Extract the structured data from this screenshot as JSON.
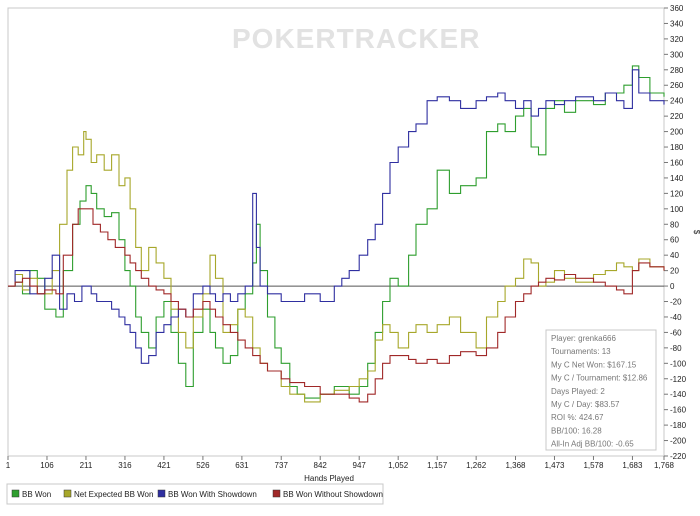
{
  "watermark": "POKERTRACKER",
  "chart_data": {
    "type": "line",
    "xlabel": "Hands Played",
    "ylabel": "$",
    "xlim": [
      1,
      1768
    ],
    "ylim": [
      -220,
      360
    ],
    "x_ticks": [
      "1",
      "106",
      "211",
      "316",
      "421",
      "526",
      "631",
      "737",
      "842",
      "947",
      "1,052",
      "1,157",
      "1,262",
      "1,368",
      "1,473",
      "1,578",
      "1,683",
      "1,768"
    ],
    "y_ticks": [
      -220,
      -200,
      -180,
      -160,
      -140,
      -120,
      -100,
      -80,
      -60,
      -40,
      -20,
      0,
      20,
      40,
      60,
      80,
      100,
      120,
      140,
      160,
      180,
      200,
      220,
      240,
      260,
      280,
      300,
      320,
      340,
      360
    ],
    "grid": false,
    "legend_position": "bottom",
    "series": [
      {
        "name": "BB Won",
        "color": "#2e9e2e",
        "points": [
          [
            1,
            0
          ],
          [
            20,
            5
          ],
          [
            40,
            -10
          ],
          [
            60,
            20
          ],
          [
            80,
            10
          ],
          [
            100,
            -30
          ],
          [
            130,
            -40
          ],
          [
            150,
            20
          ],
          [
            175,
            80
          ],
          [
            195,
            110
          ],
          [
            211,
            130
          ],
          [
            225,
            120
          ],
          [
            240,
            100
          ],
          [
            260,
            90
          ],
          [
            280,
            95
          ],
          [
            300,
            60
          ],
          [
            316,
            20
          ],
          [
            330,
            0
          ],
          [
            345,
            -40
          ],
          [
            360,
            -60
          ],
          [
            380,
            -80
          ],
          [
            400,
            -40
          ],
          [
            421,
            -20
          ],
          [
            440,
            -60
          ],
          [
            460,
            -100
          ],
          [
            480,
            -130
          ],
          [
            500,
            -60
          ],
          [
            526,
            -30
          ],
          [
            545,
            -60
          ],
          [
            560,
            -80
          ],
          [
            580,
            -100
          ],
          [
            600,
            -90
          ],
          [
            620,
            -30
          ],
          [
            640,
            -10
          ],
          [
            660,
            30
          ],
          [
            670,
            80
          ],
          [
            680,
            20
          ],
          [
            700,
            -40
          ],
          [
            720,
            -80
          ],
          [
            737,
            -100
          ],
          [
            760,
            -130
          ],
          [
            780,
            -140
          ],
          [
            800,
            -145
          ],
          [
            842,
            -140
          ],
          [
            880,
            -130
          ],
          [
            920,
            -140
          ],
          [
            947,
            -130
          ],
          [
            970,
            -100
          ],
          [
            990,
            -60
          ],
          [
            1010,
            -20
          ],
          [
            1030,
            10
          ],
          [
            1052,
            0
          ],
          [
            1080,
            40
          ],
          [
            1100,
            80
          ],
          [
            1130,
            100
          ],
          [
            1157,
            150
          ],
          [
            1190,
            120
          ],
          [
            1220,
            130
          ],
          [
            1262,
            140
          ],
          [
            1290,
            200
          ],
          [
            1320,
            210
          ],
          [
            1340,
            200
          ],
          [
            1368,
            220
          ],
          [
            1390,
            230
          ],
          [
            1410,
            180
          ],
          [
            1430,
            170
          ],
          [
            1450,
            230
          ],
          [
            1473,
            240
          ],
          [
            1500,
            225
          ],
          [
            1530,
            240
          ],
          [
            1578,
            235
          ],
          [
            1610,
            250
          ],
          [
            1640,
            250
          ],
          [
            1660,
            260
          ],
          [
            1683,
            285
          ],
          [
            1700,
            270
          ],
          [
            1730,
            250
          ],
          [
            1768,
            245
          ]
        ]
      },
      {
        "name": "Net Expected BB Won",
        "color": "#a7a72a",
        "points": [
          [
            1,
            0
          ],
          [
            20,
            15
          ],
          [
            40,
            -5
          ],
          [
            60,
            10
          ],
          [
            80,
            -10
          ],
          [
            100,
            -10
          ],
          [
            120,
            20
          ],
          [
            140,
            80
          ],
          [
            160,
            150
          ],
          [
            175,
            180
          ],
          [
            190,
            170
          ],
          [
            205,
            200
          ],
          [
            211,
            190
          ],
          [
            225,
            160
          ],
          [
            240,
            170
          ],
          [
            260,
            150
          ],
          [
            280,
            170
          ],
          [
            300,
            130
          ],
          [
            316,
            140
          ],
          [
            330,
            100
          ],
          [
            345,
            50
          ],
          [
            360,
            20
          ],
          [
            380,
            50
          ],
          [
            400,
            30
          ],
          [
            421,
            10
          ],
          [
            440,
            -30
          ],
          [
            460,
            -60
          ],
          [
            480,
            -80
          ],
          [
            500,
            -40
          ],
          [
            526,
            -10
          ],
          [
            545,
            40
          ],
          [
            560,
            10
          ],
          [
            580,
            -60
          ],
          [
            600,
            -50
          ],
          [
            620,
            -30
          ],
          [
            640,
            -40
          ],
          [
            660,
            -80
          ],
          [
            680,
            -100
          ],
          [
            700,
            -110
          ],
          [
            737,
            -130
          ],
          [
            760,
            -140
          ],
          [
            800,
            -150
          ],
          [
            842,
            -140
          ],
          [
            880,
            -135
          ],
          [
            920,
            -130
          ],
          [
            947,
            -120
          ],
          [
            970,
            -110
          ],
          [
            990,
            -70
          ],
          [
            1010,
            -50
          ],
          [
            1030,
            -60
          ],
          [
            1052,
            -80
          ],
          [
            1080,
            -60
          ],
          [
            1100,
            -50
          ],
          [
            1130,
            -60
          ],
          [
            1157,
            -50
          ],
          [
            1190,
            -40
          ],
          [
            1220,
            -60
          ],
          [
            1262,
            -80
          ],
          [
            1290,
            -40
          ],
          [
            1320,
            -20
          ],
          [
            1340,
            0
          ],
          [
            1368,
            10
          ],
          [
            1390,
            35
          ],
          [
            1410,
            30
          ],
          [
            1430,
            0
          ],
          [
            1450,
            5
          ],
          [
            1473,
            20
          ],
          [
            1500,
            10
          ],
          [
            1530,
            5
          ],
          [
            1578,
            15
          ],
          [
            1610,
            20
          ],
          [
            1640,
            30
          ],
          [
            1660,
            25
          ],
          [
            1683,
            20
          ],
          [
            1700,
            35
          ],
          [
            1730,
            25
          ],
          [
            1768,
            20
          ]
        ]
      },
      {
        "name": "BB Won With Showdown",
        "color": "#2f2fa0",
        "points": [
          [
            1,
            0
          ],
          [
            20,
            20
          ],
          [
            40,
            20
          ],
          [
            60,
            -10
          ],
          [
            80,
            -10
          ],
          [
            100,
            10
          ],
          [
            120,
            40
          ],
          [
            140,
            -30
          ],
          [
            160,
            -10
          ],
          [
            180,
            -20
          ],
          [
            200,
            0
          ],
          [
            211,
            0
          ],
          [
            225,
            -10
          ],
          [
            240,
            -20
          ],
          [
            260,
            -20
          ],
          [
            280,
            -30
          ],
          [
            300,
            -40
          ],
          [
            316,
            -50
          ],
          [
            330,
            -60
          ],
          [
            345,
            -80
          ],
          [
            360,
            -100
          ],
          [
            380,
            -90
          ],
          [
            400,
            -60
          ],
          [
            421,
            -50
          ],
          [
            440,
            -40
          ],
          [
            460,
            -30
          ],
          [
            480,
            -40
          ],
          [
            500,
            -10
          ],
          [
            526,
            0
          ],
          [
            545,
            -10
          ],
          [
            560,
            -20
          ],
          [
            580,
            -10
          ],
          [
            600,
            -20
          ],
          [
            620,
            -10
          ],
          [
            640,
            0
          ],
          [
            660,
            120
          ],
          [
            670,
            50
          ],
          [
            680,
            0
          ],
          [
            700,
            -10
          ],
          [
            737,
            -20
          ],
          [
            760,
            -20
          ],
          [
            800,
            -10
          ],
          [
            842,
            -20
          ],
          [
            880,
            0
          ],
          [
            900,
            10
          ],
          [
            920,
            20
          ],
          [
            947,
            40
          ],
          [
            970,
            60
          ],
          [
            990,
            80
          ],
          [
            1010,
            120
          ],
          [
            1030,
            160
          ],
          [
            1052,
            180
          ],
          [
            1080,
            200
          ],
          [
            1100,
            210
          ],
          [
            1130,
            240
          ],
          [
            1157,
            245
          ],
          [
            1190,
            240
          ],
          [
            1220,
            230
          ],
          [
            1262,
            240
          ],
          [
            1290,
            245
          ],
          [
            1320,
            250
          ],
          [
            1340,
            240
          ],
          [
            1368,
            230
          ],
          [
            1390,
            240
          ],
          [
            1410,
            220
          ],
          [
            1430,
            230
          ],
          [
            1450,
            240
          ],
          [
            1473,
            235
          ],
          [
            1500,
            240
          ],
          [
            1530,
            245
          ],
          [
            1578,
            240
          ],
          [
            1610,
            250
          ],
          [
            1640,
            240
          ],
          [
            1660,
            230
          ],
          [
            1683,
            280
          ],
          [
            1700,
            250
          ],
          [
            1730,
            240
          ],
          [
            1768,
            235
          ]
        ]
      },
      {
        "name": "BB Won Without Showdown",
        "color": "#a02828",
        "points": [
          [
            1,
            0
          ],
          [
            20,
            5
          ],
          [
            40,
            10
          ],
          [
            60,
            0
          ],
          [
            80,
            -10
          ],
          [
            100,
            -5
          ],
          [
            130,
            -10
          ],
          [
            150,
            40
          ],
          [
            175,
            80
          ],
          [
            190,
            100
          ],
          [
            211,
            100
          ],
          [
            230,
            80
          ],
          [
            250,
            70
          ],
          [
            270,
            60
          ],
          [
            290,
            50
          ],
          [
            316,
            40
          ],
          [
            330,
            30
          ],
          [
            345,
            20
          ],
          [
            360,
            10
          ],
          [
            380,
            0
          ],
          [
            400,
            -5
          ],
          [
            421,
            -10
          ],
          [
            440,
            -20
          ],
          [
            460,
            -30
          ],
          [
            480,
            -40
          ],
          [
            500,
            -30
          ],
          [
            526,
            -20
          ],
          [
            545,
            -30
          ],
          [
            560,
            -40
          ],
          [
            580,
            -50
          ],
          [
            600,
            -60
          ],
          [
            620,
            -70
          ],
          [
            640,
            -80
          ],
          [
            660,
            -90
          ],
          [
            680,
            -100
          ],
          [
            700,
            -110
          ],
          [
            737,
            -120
          ],
          [
            760,
            -125
          ],
          [
            800,
            -130
          ],
          [
            842,
            -140
          ],
          [
            880,
            -140
          ],
          [
            920,
            -145
          ],
          [
            947,
            -150
          ],
          [
            970,
            -140
          ],
          [
            990,
            -120
          ],
          [
            1010,
            -100
          ],
          [
            1030,
            -90
          ],
          [
            1052,
            -90
          ],
          [
            1080,
            -95
          ],
          [
            1100,
            -100
          ],
          [
            1130,
            -95
          ],
          [
            1157,
            -100
          ],
          [
            1190,
            -90
          ],
          [
            1220,
            -85
          ],
          [
            1262,
            -90
          ],
          [
            1290,
            -80
          ],
          [
            1320,
            -60
          ],
          [
            1340,
            -40
          ],
          [
            1368,
            -20
          ],
          [
            1390,
            -10
          ],
          [
            1410,
            0
          ],
          [
            1430,
            5
          ],
          [
            1450,
            10
          ],
          [
            1473,
            8
          ],
          [
            1500,
            15
          ],
          [
            1530,
            10
          ],
          [
            1578,
            5
          ],
          [
            1610,
            0
          ],
          [
            1640,
            -5
          ],
          [
            1660,
            -10
          ],
          [
            1683,
            20
          ],
          [
            1700,
            30
          ],
          [
            1730,
            25
          ],
          [
            1768,
            20
          ]
        ]
      }
    ]
  },
  "stats": {
    "lines": [
      "Player: grenka666",
      "Tournaments: 13",
      "My C Net Won: $167.15",
      "My C / Tournament: $12.86",
      "Days Played: 2",
      "My C / Day: $83.57",
      "ROI %: 424.67",
      "BB/100: 16.28",
      "All-In Adj BB/100: -0.65"
    ]
  }
}
